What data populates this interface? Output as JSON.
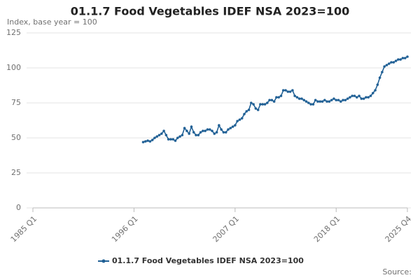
{
  "chart_data": {
    "type": "line",
    "title": "01.1.7 Food Vegetables IDEF NSA 2023=100",
    "y_label": "Index, base year = 100",
    "source": "Source:",
    "categories": [
      "1985 Q1",
      null,
      null,
      null,
      null,
      null,
      null,
      null,
      null,
      null,
      null,
      null,
      null,
      null,
      null,
      null,
      null,
      null,
      null,
      null,
      null,
      null,
      null,
      null,
      null,
      null,
      null,
      null,
      null,
      null,
      null,
      null,
      null,
      null,
      null,
      null,
      null,
      null,
      null,
      null,
      null,
      null,
      null,
      null,
      "1996 Q1",
      null,
      null,
      null,
      null,
      null,
      null,
      null,
      null,
      null,
      null,
      null,
      null,
      null,
      null,
      null,
      null,
      null,
      null,
      null,
      null,
      null,
      null,
      null,
      null,
      null,
      null,
      null,
      null,
      null,
      null,
      null,
      null,
      null,
      null,
      null,
      null,
      null,
      null,
      null,
      null,
      null,
      null,
      null,
      "2007 Q1",
      null,
      null,
      null,
      null,
      null,
      null,
      null,
      null,
      null,
      null,
      null,
      null,
      null,
      null,
      null,
      null,
      null,
      null,
      null,
      null,
      null,
      null,
      null,
      null,
      null,
      null,
      null,
      null,
      null,
      null,
      null,
      null,
      null,
      null,
      null,
      null,
      null,
      null,
      null,
      null,
      null,
      null,
      null,
      "2018 Q1",
      null,
      null,
      null,
      null,
      null,
      null,
      null,
      null,
      null,
      null,
      null,
      null,
      null,
      null,
      null,
      null,
      null,
      null,
      null,
      null,
      null,
      null,
      null,
      null,
      null,
      null,
      null,
      null,
      null,
      null,
      "2025 Q4"
    ],
    "series": [
      {
        "name": "01.1.7 Food Vegetables IDEF NSA 2023=100",
        "color": "#206095",
        "values": [
          null,
          null,
          null,
          null,
          null,
          null,
          null,
          null,
          null,
          null,
          null,
          null,
          null,
          null,
          null,
          null,
          null,
          null,
          null,
          null,
          null,
          null,
          null,
          null,
          null,
          null,
          null,
          null,
          null,
          null,
          null,
          null,
          null,
          null,
          null,
          null,
          null,
          null,
          null,
          null,
          null,
          null,
          null,
          null,
          null,
          null,
          null,
          null,
          47,
          47.5,
          48,
          47.5,
          48.5,
          50,
          51,
          52,
          53,
          55,
          52,
          49,
          49,
          49,
          48,
          50,
          51,
          52,
          57,
          55,
          53,
          58,
          54,
          52,
          52,
          54,
          55,
          55,
          56,
          56,
          55,
          53,
          54,
          59,
          56,
          54,
          54,
          56,
          57,
          58,
          59,
          62,
          63,
          64,
          67,
          69,
          70,
          75,
          74,
          71,
          70,
          74,
          74,
          74,
          75,
          77,
          77,
          76,
          79,
          79,
          80,
          84,
          84,
          83,
          83,
          84,
          80,
          79,
          78,
          78,
          77,
          76,
          75,
          74,
          74,
          77,
          76,
          76,
          76,
          77,
          76,
          76,
          77,
          78,
          77,
          77,
          76,
          77,
          77,
          78,
          79,
          80,
          80,
          79,
          80,
          78,
          78,
          79,
          79,
          80,
          82,
          84,
          88,
          93,
          97,
          101,
          102,
          103,
          104,
          104,
          105,
          106,
          106,
          107,
          107,
          108
        ]
      }
    ],
    "ylim": [
      0,
      125
    ],
    "yticks": [
      0,
      25,
      50,
      75,
      100,
      125
    ],
    "grid": true
  }
}
